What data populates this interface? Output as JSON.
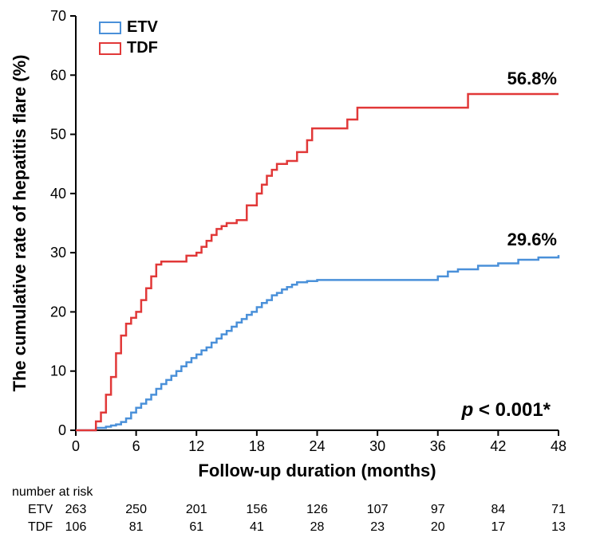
{
  "chart": {
    "type": "survival-step",
    "xlabel": "Follow-up duration (months)",
    "ylabel": "The cumulative rate of hepatitis flare (%)",
    "xlim": [
      0,
      48
    ],
    "ylim": [
      0,
      70
    ],
    "xticks": [
      0,
      6,
      12,
      18,
      24,
      30,
      36,
      42,
      48
    ],
    "yticks": [
      0,
      10,
      20,
      30,
      40,
      50,
      60,
      70
    ],
    "xtick_step": 6,
    "ytick_step": 10,
    "background_color": "#ffffff",
    "axis_color": "#000000",
    "line_width": 2.5,
    "label_fontsize": 22,
    "tick_fontsize": 18,
    "series": {
      "ETV": {
        "label": "ETV",
        "color": "#4a90d9",
        "endpoint_label": "29.6%",
        "points": [
          [
            0,
            0
          ],
          [
            1.5,
            0
          ],
          [
            2,
            0.4
          ],
          [
            3,
            0.6
          ],
          [
            3.5,
            0.8
          ],
          [
            4,
            1.0
          ],
          [
            4.5,
            1.4
          ],
          [
            5,
            2.0
          ],
          [
            5.5,
            3.0
          ],
          [
            6,
            3.8
          ],
          [
            6.5,
            4.5
          ],
          [
            7,
            5.2
          ],
          [
            7.5,
            6.0
          ],
          [
            8,
            7.0
          ],
          [
            8.5,
            7.8
          ],
          [
            9,
            8.5
          ],
          [
            9.5,
            9.2
          ],
          [
            10,
            10.0
          ],
          [
            10.5,
            10.8
          ],
          [
            11,
            11.5
          ],
          [
            11.5,
            12.2
          ],
          [
            12,
            12.8
          ],
          [
            12.5,
            13.5
          ],
          [
            13,
            14.0
          ],
          [
            13.5,
            14.8
          ],
          [
            14,
            15.5
          ],
          [
            14.5,
            16.2
          ],
          [
            15,
            16.8
          ],
          [
            15.5,
            17.5
          ],
          [
            16,
            18.2
          ],
          [
            16.5,
            18.8
          ],
          [
            17,
            19.5
          ],
          [
            17.5,
            20.0
          ],
          [
            18,
            20.8
          ],
          [
            18.5,
            21.5
          ],
          [
            19,
            22.0
          ],
          [
            19.5,
            22.8
          ],
          [
            20,
            23.2
          ],
          [
            20.5,
            23.8
          ],
          [
            21,
            24.2
          ],
          [
            21.5,
            24.6
          ],
          [
            22,
            25.0
          ],
          [
            23,
            25.2
          ],
          [
            24,
            25.4
          ],
          [
            26,
            25.4
          ],
          [
            28,
            25.4
          ],
          [
            30,
            25.4
          ],
          [
            32,
            25.4
          ],
          [
            34,
            25.4
          ],
          [
            36,
            26.0
          ],
          [
            37,
            26.8
          ],
          [
            38,
            27.2
          ],
          [
            40,
            27.8
          ],
          [
            42,
            28.2
          ],
          [
            44,
            28.8
          ],
          [
            46,
            29.2
          ],
          [
            48,
            29.6
          ]
        ]
      },
      "TDF": {
        "label": "TDF",
        "color": "#e13838",
        "endpoint_label": "56.8%",
        "points": [
          [
            0,
            0
          ],
          [
            1.5,
            0
          ],
          [
            2,
            1.5
          ],
          [
            2.5,
            3.0
          ],
          [
            3,
            6.0
          ],
          [
            3.5,
            9.0
          ],
          [
            4,
            13.0
          ],
          [
            4.5,
            16.0
          ],
          [
            5,
            18.0
          ],
          [
            5.5,
            19.0
          ],
          [
            6,
            20.0
          ],
          [
            6.5,
            22.0
          ],
          [
            7,
            24.0
          ],
          [
            7.5,
            26.0
          ],
          [
            8,
            28.0
          ],
          [
            8.5,
            28.5
          ],
          [
            9,
            28.5
          ],
          [
            10,
            28.5
          ],
          [
            11,
            29.5
          ],
          [
            12,
            30.0
          ],
          [
            12.5,
            31.0
          ],
          [
            13,
            32.0
          ],
          [
            13.5,
            33.0
          ],
          [
            14,
            34.0
          ],
          [
            14.5,
            34.5
          ],
          [
            15,
            35.0
          ],
          [
            16,
            35.5
          ],
          [
            17,
            38.0
          ],
          [
            18,
            40.0
          ],
          [
            18.5,
            41.5
          ],
          [
            19,
            43.0
          ],
          [
            19.5,
            44.0
          ],
          [
            20,
            45.0
          ],
          [
            21,
            45.5
          ],
          [
            22,
            47.0
          ],
          [
            23,
            49.0
          ],
          [
            23.5,
            51.0
          ],
          [
            24,
            51.0
          ],
          [
            26,
            51.0
          ],
          [
            27,
            52.5
          ],
          [
            28,
            54.5
          ],
          [
            30,
            54.5
          ],
          [
            32,
            54.5
          ],
          [
            34,
            54.5
          ],
          [
            36,
            54.5
          ],
          [
            38,
            54.5
          ],
          [
            39,
            56.8
          ],
          [
            40,
            56.8
          ],
          [
            42,
            56.8
          ],
          [
            44,
            56.8
          ],
          [
            46,
            56.8
          ],
          [
            48,
            56.8
          ]
        ]
      }
    },
    "legend": {
      "position": "top-left",
      "items": [
        "ETV",
        "TDF"
      ]
    },
    "pvalue_text": "p < 0.001*"
  },
  "risk_table": {
    "header": "number at risk",
    "xpositions": [
      0,
      6,
      12,
      18,
      24,
      30,
      36,
      42,
      48
    ],
    "rows": [
      {
        "label": "ETV",
        "values": [
          263,
          250,
          201,
          156,
          126,
          107,
          97,
          84,
          71
        ]
      },
      {
        "label": "TDF",
        "values": [
          106,
          81,
          61,
          41,
          28,
          23,
          20,
          17,
          13
        ]
      }
    ]
  }
}
